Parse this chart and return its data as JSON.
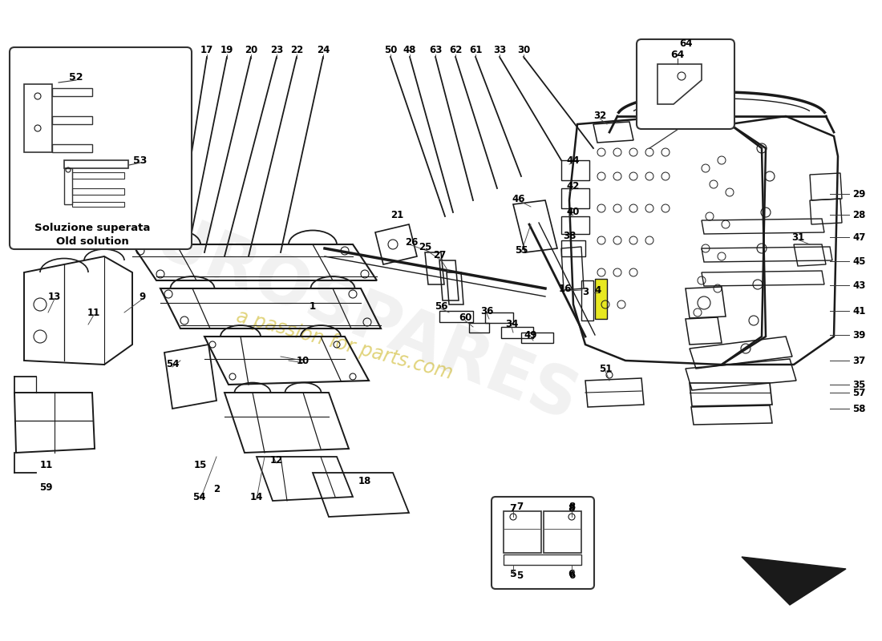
{
  "bg": "#ffffff",
  "lc": "#1a1a1a",
  "watermark1": "EUROSPARES",
  "watermark2": "a passion for parts.com",
  "box1_title": "Soluzione superata\nOld solution",
  "top_labels": [
    [
      "17",
      258,
      63
    ],
    [
      "19",
      283,
      63
    ],
    [
      "20",
      313,
      63
    ],
    [
      "23",
      345,
      63
    ],
    [
      "22",
      370,
      63
    ],
    [
      "24",
      403,
      63
    ],
    [
      "50",
      487,
      63
    ],
    [
      "48",
      511,
      63
    ],
    [
      "63",
      543,
      63
    ],
    [
      "62",
      568,
      63
    ],
    [
      "61",
      593,
      63
    ],
    [
      "33",
      623,
      63
    ],
    [
      "30",
      653,
      63
    ]
  ],
  "right_labels": [
    [
      "29",
      1063,
      242
    ],
    [
      "28",
      1063,
      268
    ],
    [
      "47",
      1063,
      296
    ],
    [
      "45",
      1063,
      326
    ],
    [
      "43",
      1063,
      356
    ],
    [
      "41",
      1063,
      388
    ],
    [
      "39",
      1063,
      418
    ],
    [
      "37",
      1063,
      450
    ],
    [
      "35",
      1063,
      480
    ],
    [
      "57",
      1063,
      490
    ],
    [
      "58",
      1063,
      510
    ]
  ]
}
